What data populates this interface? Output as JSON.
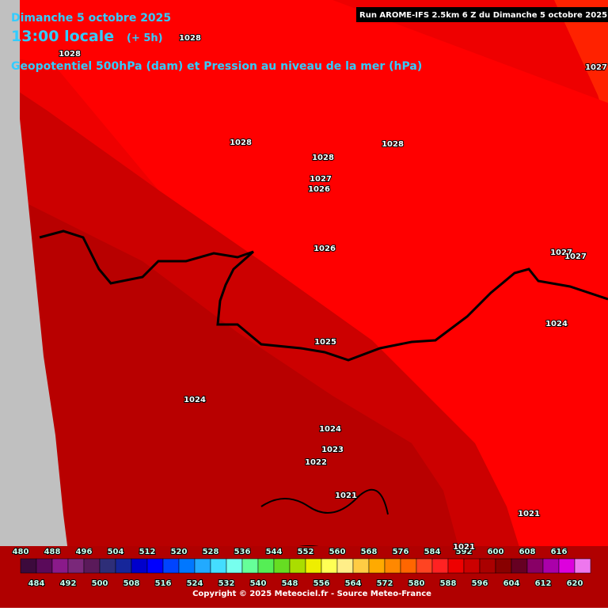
{
  "header": {
    "date": "Dimanche 5 octobre 2025",
    "time": "13:00 locale",
    "offset": "(+ 5h)",
    "subtitle": "Geopotentiel 500hPa (dam) et Pression au niveau de la mer (hPa)",
    "run": "Run AROME-IFS 2.5km 6 Z du Dimanche 5 octobre 2025"
  },
  "pressure_labels": [
    "1028",
    "1027",
    "1028",
    "1028",
    "1028",
    "1028",
    "1027",
    "1026",
    "1026",
    "1027",
    "1027",
    "1024",
    "1025",
    "1024",
    "1024",
    "1023",
    "1022",
    "1021",
    "1021",
    "1021"
  ],
  "colorbar": {
    "top_labels": [
      "480",
      "488",
      "496",
      "504",
      "512",
      "520",
      "528",
      "536",
      "544",
      "552",
      "560",
      "568",
      "576",
      "584",
      "592",
      "600",
      "608",
      "616"
    ],
    "bottom_labels": [
      "484",
      "492",
      "500",
      "508",
      "516",
      "524",
      "532",
      "540",
      "548",
      "556",
      "564",
      "572",
      "580",
      "588",
      "596",
      "604",
      "612",
      "620"
    ],
    "colors": [
      "#3c0a3c",
      "#5a0a5a",
      "#8a1a8a",
      "#7a287a",
      "#5a1a5a",
      "#2e2e78",
      "#16269a",
      "#0000cc",
      "#0000ff",
      "#0044ff",
      "#0077ff",
      "#22aaff",
      "#44ddff",
      "#77ffee",
      "#66ff99",
      "#55ee55",
      "#66dd22",
      "#aadd00",
      "#eeee00",
      "#ffff55",
      "#ffee88",
      "#ffcc44",
      "#ffaa00",
      "#ff8800",
      "#ff6600",
      "#ff4422",
      "#ff2222",
      "#ee0000",
      "#cc0000",
      "#aa0000",
      "#880000",
      "#660022",
      "#880066",
      "#aa00aa",
      "#dd00dd",
      "#ee77ee"
    ]
  },
  "copyright": "Copyright © 2025 Meteociel.fr - Source Meteo-France"
}
